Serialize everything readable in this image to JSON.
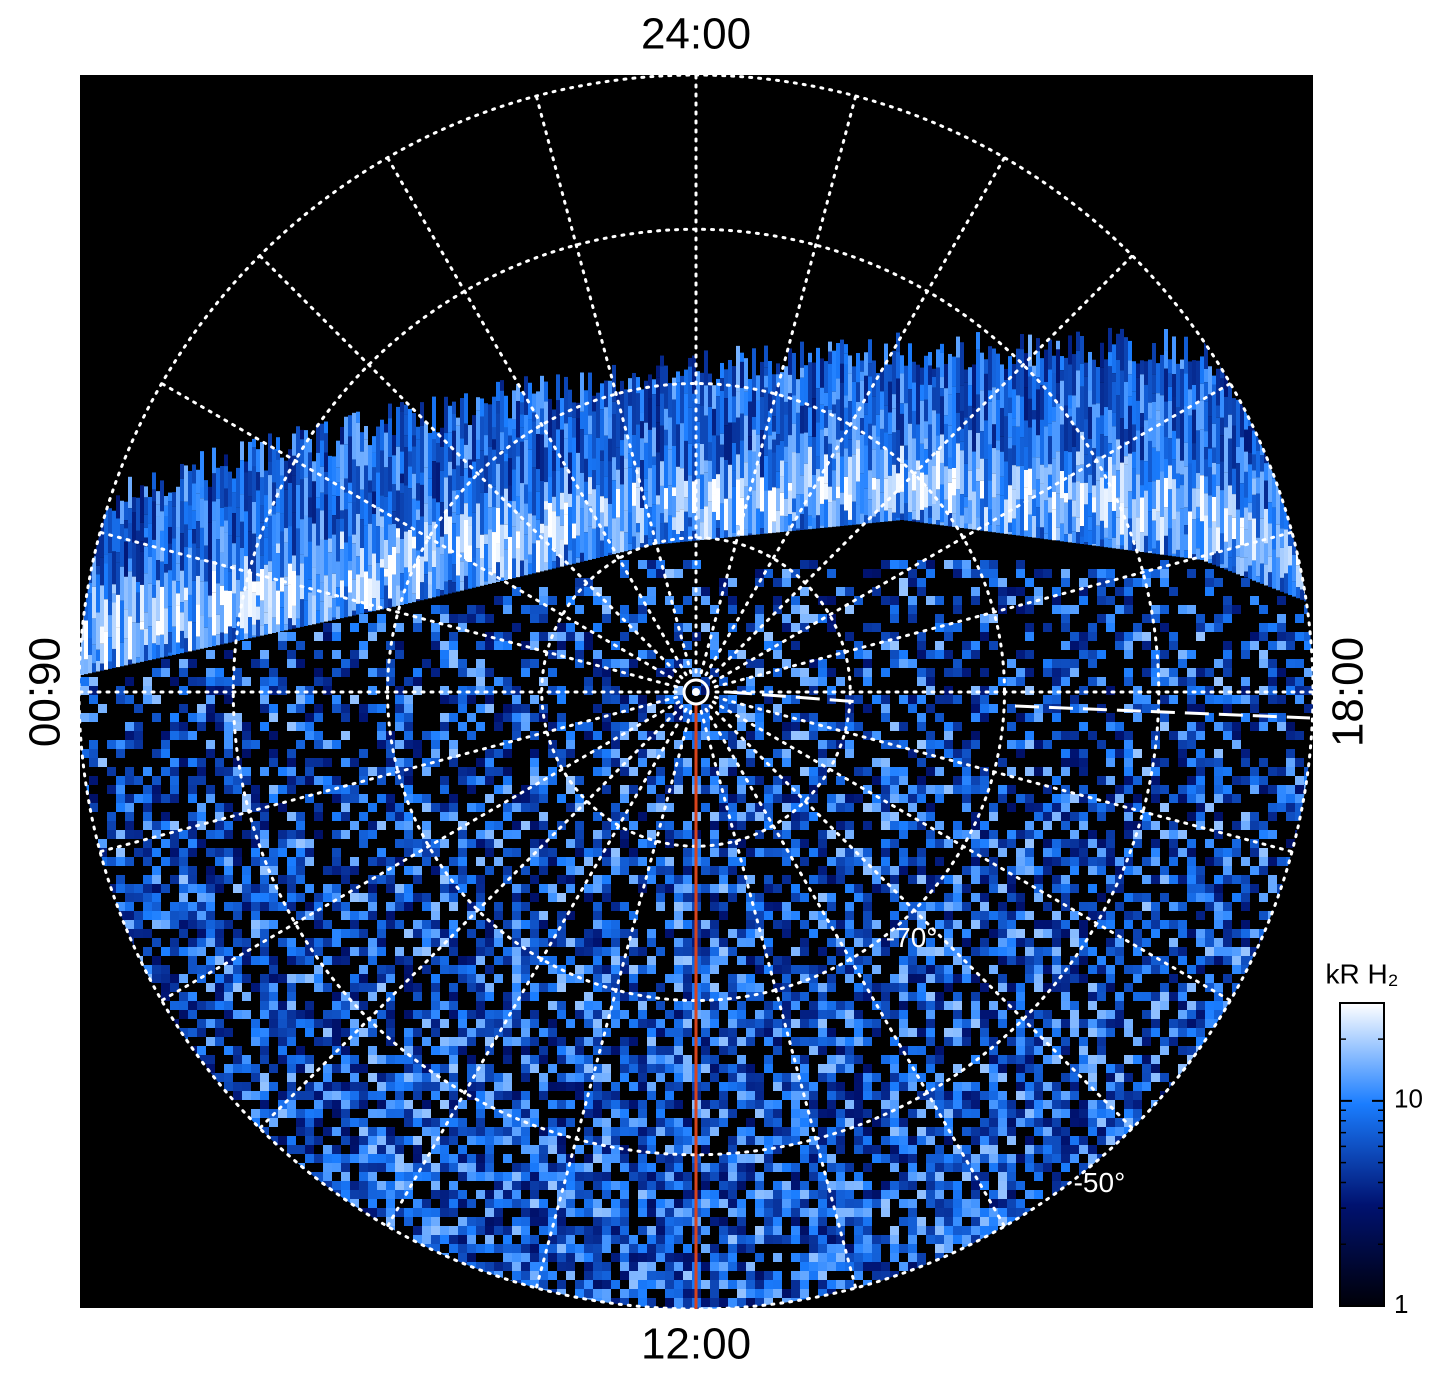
{
  "chart_data": {
    "type": "polar-image",
    "hour_labels": [
      {
        "value": 24,
        "label": "24:00"
      },
      {
        "value": 6,
        "label": "06:00"
      },
      {
        "value": 12,
        "label": "12:00"
      },
      {
        "value": 18,
        "label": "18:00"
      }
    ],
    "latlim": [
      -90,
      -50
    ],
    "lat_circles": [
      -80,
      -70,
      -60,
      -50
    ],
    "lat_labels": [
      {
        "value": -70,
        "label": "-70°"
      },
      {
        "value": -50,
        "label": "-50°"
      }
    ],
    "meridian_step_hours": 1,
    "marker_hour": 12,
    "marker_color": "#d9441c",
    "colorbar": {
      "label": "kR H₂",
      "log": true,
      "clim": [
        1,
        30
      ],
      "ticks": [
        1,
        10
      ],
      "colormap": [
        "#000008",
        "#001270",
        "#1a7dff",
        "#ffffff"
      ]
    }
  }
}
